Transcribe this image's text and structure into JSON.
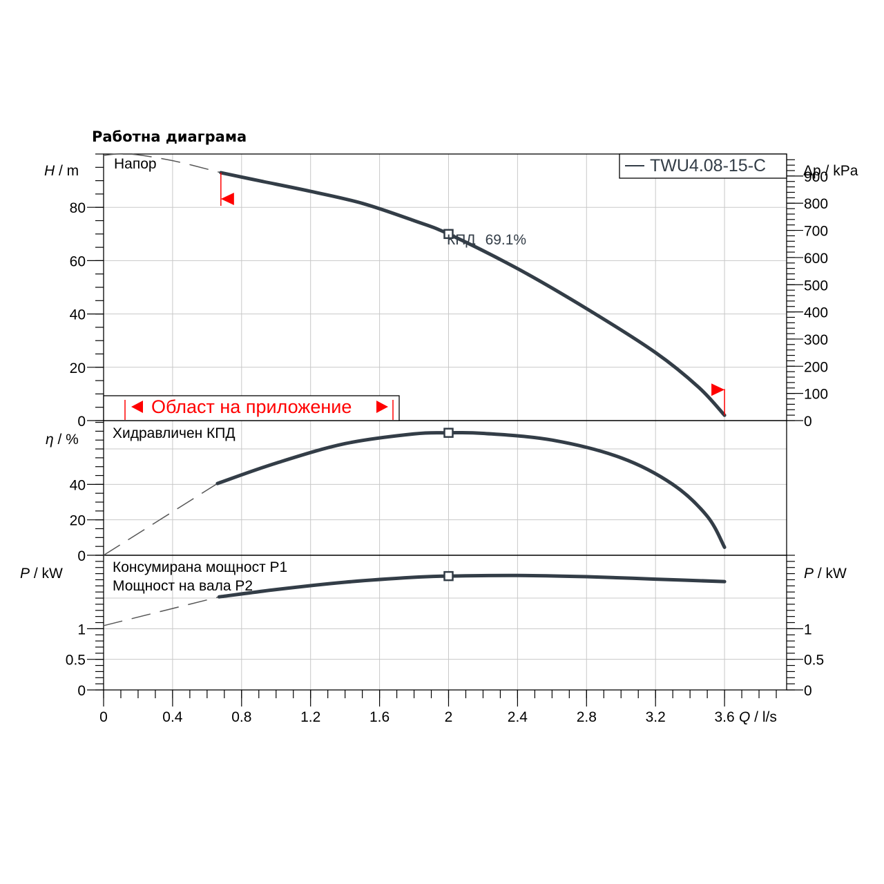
{
  "title": "Работна диаграма",
  "legend": {
    "label": "TWU4.08-15-C",
    "color": "#333d47"
  },
  "colors": {
    "curve": "#333d47",
    "range": "#ff0000",
    "grid": "#c8c8c8"
  },
  "operating_point": {
    "efficiency_label": "КПД",
    "efficiency_value": "69.1%"
  },
  "application_range_label": "Област на приложение",
  "chart_data": [
    {
      "type": "line",
      "panel": "head",
      "title": "Напор",
      "xlabel": "Q / l/s",
      "ylabel_var": "H",
      "ylabel_unit": " / m",
      "ylabel_right_var": "Δp",
      "ylabel_right_unit": " / kPa",
      "xlim": [
        0,
        3.96
      ],
      "ylim": [
        0,
        100
      ],
      "y_ticks": [
        0,
        20,
        40,
        60,
        80
      ],
      "right_ylim": [
        0,
        981
      ],
      "right_ticks": [
        0,
        100,
        200,
        300,
        400,
        500,
        600,
        700,
        800,
        900
      ],
      "x": [
        0.68,
        0.9,
        1.2,
        1.5,
        1.8,
        2.0,
        2.4,
        2.8,
        3.2,
        3.45,
        3.6
      ],
      "values": [
        93,
        90,
        86,
        81.5,
        75,
        70,
        57,
        42,
        25.5,
        12.5,
        2
      ],
      "extrapolated": {
        "x": [
          0,
          0.15,
          0.4,
          0.68
        ],
        "values": [
          99.5,
          100,
          97.5,
          93
        ]
      },
      "operating_point": {
        "x": 2.0,
        "y": 70
      },
      "range_limits": {
        "x": [
          0.68,
          3.6
        ]
      }
    },
    {
      "type": "line",
      "panel": "efficiency",
      "title": "Хидравличен КПД",
      "ylabel_var": "η",
      "ylabel_unit": " / %",
      "ylim": [
        0,
        76
      ],
      "y_ticks": [
        0,
        20,
        40
      ],
      "x": [
        0.66,
        1.0,
        1.4,
        1.8,
        2.0,
        2.2,
        2.6,
        3.0,
        3.3,
        3.5,
        3.6
      ],
      "values": [
        40.5,
        52,
        63,
        68.5,
        69.1,
        68.8,
        65,
        55,
        40,
        22,
        4.5
      ],
      "extrapolated": {
        "x": [
          0,
          0.66
        ],
        "values": [
          0,
          40.5
        ]
      },
      "operating_point": {
        "x": 2.0,
        "y": 69.1
      }
    },
    {
      "type": "line",
      "panel": "power",
      "title_line1": "Консумирана мощност P1",
      "title_line2": "Мощност на вала P2",
      "ylabel_var": "P",
      "ylabel_unit": "  / kW",
      "ylim": [
        0,
        2.2
      ],
      "y_ticks": [
        0,
        0.5,
        1
      ],
      "right_ticks": [
        0,
        0.5,
        1
      ],
      "x": [
        0.67,
        1.0,
        1.4,
        1.8,
        2.0,
        2.4,
        2.8,
        3.2,
        3.6
      ],
      "values": [
        1.52,
        1.64,
        1.76,
        1.84,
        1.86,
        1.87,
        1.85,
        1.81,
        1.77
      ],
      "extrapolated": {
        "x": [
          0,
          0.67
        ],
        "values": [
          1.05,
          1.52
        ]
      },
      "operating_point": {
        "x": 2.0,
        "y": 1.86
      }
    }
  ],
  "x_axis": {
    "label_var": "Q",
    "label_unit": " / l/s",
    "ticks": [
      0,
      0.4,
      0.8,
      1.2,
      1.6,
      2,
      2.4,
      2.8,
      3.2,
      3.6
    ],
    "tick_labels": [
      "0",
      "0.4",
      "0.8",
      "1.2",
      "1.6",
      "2",
      "2.4",
      "2.8",
      "3.2",
      "3.6"
    ]
  }
}
